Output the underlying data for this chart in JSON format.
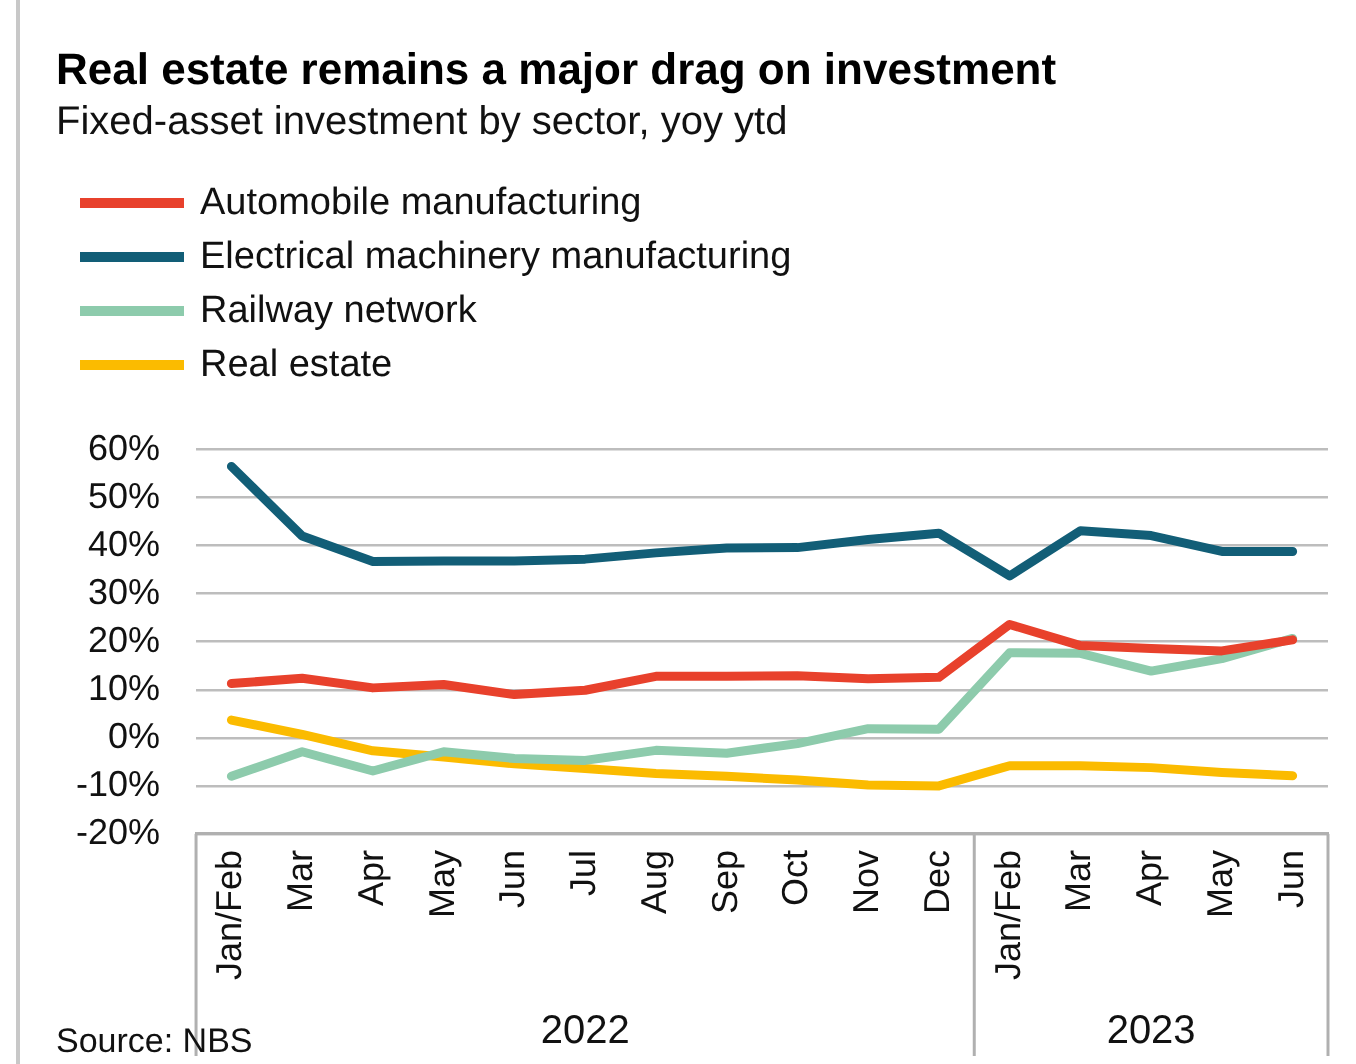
{
  "chart_data": {
    "type": "line",
    "title": "Real estate remains a major drag on investment",
    "subtitle": "Fixed-asset investment by sector, yoy ytd",
    "categories": [
      "Jan/Feb",
      "Mar",
      "Apr",
      "May",
      "Jun",
      "Jul",
      "Aug",
      "Sep",
      "Oct",
      "Nov",
      "Dec",
      "Jan/Feb",
      "Mar",
      "Apr",
      "May",
      "Jun"
    ],
    "series": [
      {
        "name": "Automobile manufacturing",
        "color": "#e8412c",
        "values": [
          11.3,
          12.4,
          10.4,
          11.1,
          9,
          9.9,
          12.8,
          12.8,
          12.9,
          12.3,
          12.6,
          23.6,
          19.2,
          18.6,
          18.1,
          20.4
        ]
      },
      {
        "name": "Electrical machinery manufacturing",
        "color": "#125e77",
        "values": [
          56.5,
          42,
          36.7,
          36.8,
          36.8,
          37.2,
          38.5,
          39.5,
          39.6,
          41.3,
          42.6,
          33.7,
          43.1,
          42.1,
          38.8,
          38.8
        ]
      },
      {
        "name": "Railway network",
        "color": "#8dcbac",
        "values": [
          -8,
          -2.9,
          -6.9,
          -2.9,
          -4.3,
          -4.7,
          -2.6,
          -3.2,
          -1.2,
          1.9,
          1.8,
          17.7,
          17.6,
          13.9,
          16.5,
          20.7
        ]
      },
      {
        "name": "Real estate",
        "color": "#fbbb00",
        "values": [
          3.7,
          0.7,
          -2.7,
          -4,
          -5.4,
          -6.4,
          -7.4,
          -8,
          -8.8,
          -9.8,
          -10,
          -5.8,
          -5.8,
          -6.2,
          -7.2,
          -7.9
        ]
      }
    ],
    "ylim": [
      -20,
      60
    ],
    "yticks": [
      {
        "value": -20,
        "label": "-20%"
      },
      {
        "value": -10,
        "label": "-10%"
      },
      {
        "value": 0,
        "label": "0%"
      },
      {
        "value": 10,
        "label": "10%"
      },
      {
        "value": 20,
        "label": "20%"
      },
      {
        "value": 30,
        "label": "30%"
      },
      {
        "value": 40,
        "label": "40%"
      },
      {
        "value": 50,
        "label": "50%"
      },
      {
        "value": 60,
        "label": "60%"
      }
    ],
    "grid": "y",
    "legend": "top left",
    "marker": "none",
    "line_style": "solid",
    "annotations": [
      "2022",
      "2023",
      "Source: NBS"
    ]
  }
}
